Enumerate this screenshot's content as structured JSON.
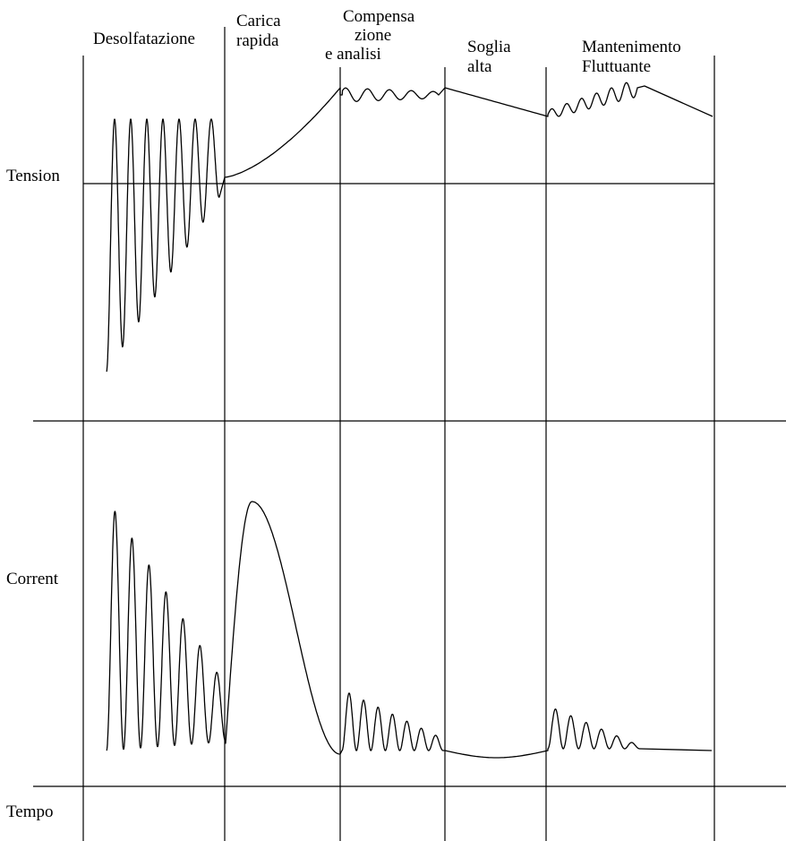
{
  "phases": [
    {
      "lines": [
        "Desolfatazione"
      ]
    },
    {
      "lines": [
        "Carica",
        "rapida"
      ]
    },
    {
      "lines": [
        "Compensa",
        "zione",
        "e analisi"
      ]
    },
    {
      "lines": [
        "Soglia",
        "alta"
      ]
    },
    {
      "lines": [
        "Mantenimento",
        "Fluttuante"
      ]
    }
  ],
  "axes": {
    "voltage_label": "Tension",
    "current_label": "Corrent",
    "time_label": "Tempo"
  }
}
